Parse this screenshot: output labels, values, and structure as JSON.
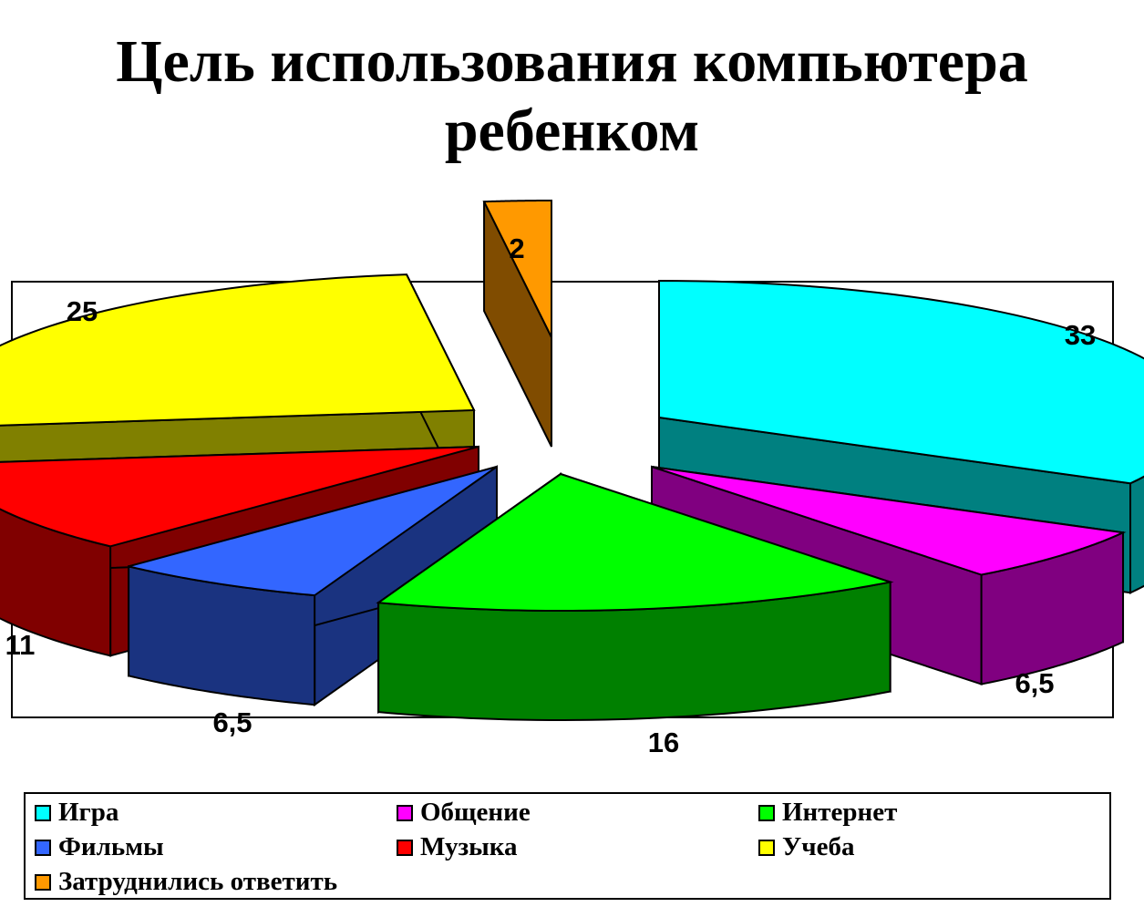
{
  "title": {
    "line1": "Цель использования компьютера",
    "line2": "ребенком"
  },
  "chart_data": {
    "type": "pie",
    "style": "3d-exploded",
    "categories": [
      "Игра",
      "Общение",
      "Интернет",
      "Фильмы",
      "Музыка",
      "Учеба",
      "Затруднились ответить"
    ],
    "values": [
      33,
      6.5,
      16,
      6.5,
      11,
      25,
      2
    ],
    "data_labels": [
      "33",
      "6,5",
      "16",
      "6,5",
      "11",
      "25",
      "2"
    ],
    "colors": [
      "#00FFFF",
      "#FF00FF",
      "#00FF00",
      "#3366FF",
      "#FF0000",
      "#FFFF00",
      "#FF9900"
    ],
    "side_colors": [
      "#008080",
      "#800080",
      "#008000",
      "#1A3380",
      "#800000",
      "#808000",
      "#804C00"
    ],
    "legend_position": "bottom",
    "legend_columns": 3
  }
}
